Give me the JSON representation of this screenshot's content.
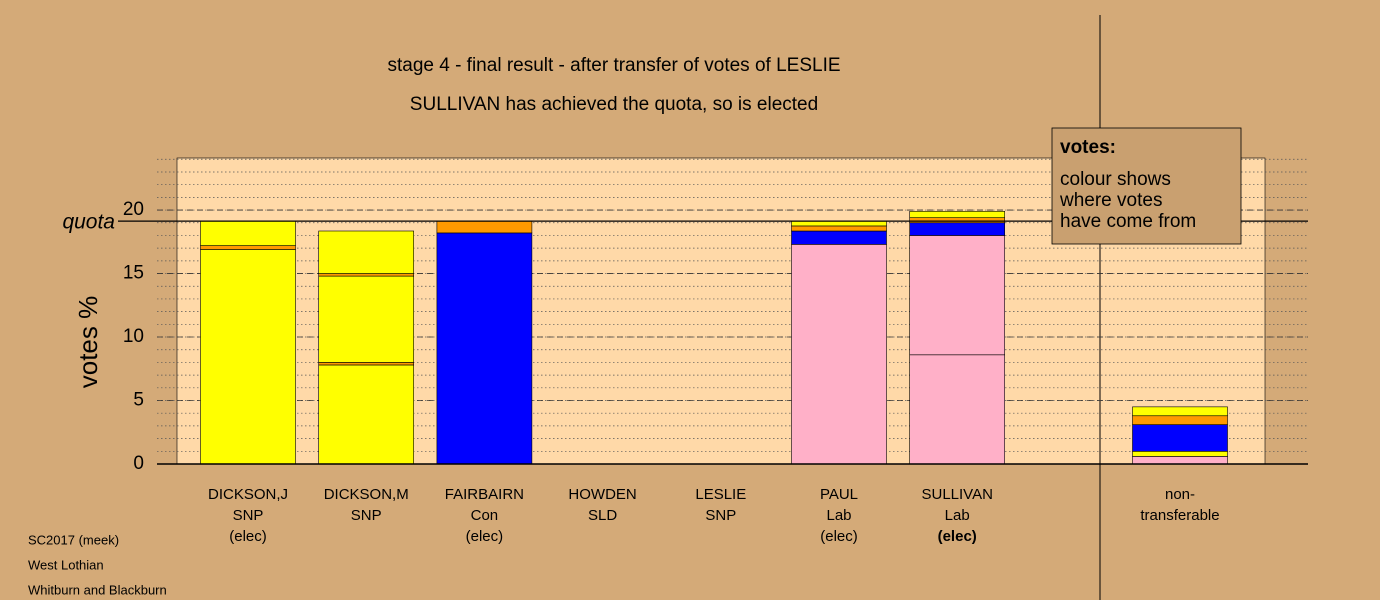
{
  "chart_data": {
    "type": "stacked-bar",
    "title": "stage 4 - final result - after transfer of votes of LESLIE",
    "subtitle": "SULLIVAN has achieved the quota, so is elected",
    "y_label": "votes %",
    "quota_label": "quota",
    "quota": 19.13,
    "ylim": [
      0,
      24.1
    ],
    "yticks": [
      0,
      5,
      10,
      15,
      20
    ],
    "minor_grid_step": 1,
    "bars": [
      {
        "lines": [
          "DICKSON,J",
          "SNP",
          "(elec)"
        ],
        "segments": [
          {
            "color": "#ffff00",
            "value": 16.9
          },
          {
            "color": "#ff9900",
            "value": 0.3
          },
          {
            "color": "#ffff00",
            "value": 1.93
          }
        ]
      },
      {
        "lines": [
          "DICKSON,M",
          "SNP"
        ],
        "segments": [
          {
            "color": "#ffff00",
            "value": 7.8
          },
          {
            "color": "#ff9900",
            "value": 0.2
          },
          {
            "color": "#ffff00",
            "value": 6.8
          },
          {
            "color": "#ff9900",
            "value": 0.2
          },
          {
            "color": "#ffff00",
            "value": 3.35
          }
        ]
      },
      {
        "lines": [
          "FAIRBAIRN",
          "Con",
          "(elec)"
        ],
        "segments": [
          {
            "color": "#0000ff",
            "value": 18.2
          },
          {
            "color": "#ff9900",
            "value": 0.93
          }
        ]
      },
      {
        "lines": [
          "HOWDEN",
          "SLD"
        ],
        "segments": []
      },
      {
        "lines": [
          "LESLIE",
          "SNP"
        ],
        "segments": []
      },
      {
        "lines": [
          "PAUL",
          "Lab",
          "(elec)"
        ],
        "segments": [
          {
            "color": "#ffb0c8",
            "value": 17.3
          },
          {
            "color": "#0000ff",
            "value": 1.05
          },
          {
            "color": "#ff9900",
            "value": 0.4
          },
          {
            "color": "#ffff00",
            "value": 0.38
          }
        ]
      },
      {
        "lines": [
          "SULLIVAN",
          "Lab",
          "(elec)"
        ],
        "bold_line": 2,
        "segments": [
          {
            "color": "#ffb0c8",
            "value": 8.6
          },
          {
            "color": "#ffb0c8",
            "value": 9.4
          },
          {
            "color": "#0000ff",
            "value": 1.0
          },
          {
            "color": "#ff9900",
            "value": 0.4
          },
          {
            "color": "#ffff00",
            "value": 0.5
          }
        ]
      }
    ],
    "nontransferable": {
      "lines": [
        "non-",
        "transferable"
      ],
      "segments": [
        {
          "color": "#ffb0c8",
          "value": 0.6
        },
        {
          "color": "#ffff00",
          "value": 0.4
        },
        {
          "color": "#0000ff",
          "value": 2.1
        },
        {
          "color": "#ff9900",
          "value": 0.7
        },
        {
          "color": "#ffff00",
          "value": 0.7
        }
      ]
    },
    "legend": {
      "title": "votes:",
      "lines": [
        "colour shows",
        "where votes",
        "have come from"
      ]
    },
    "footer": [
      "SC2017 (meek)",
      "West Lothian",
      "Whitburn and Blackburn"
    ]
  }
}
